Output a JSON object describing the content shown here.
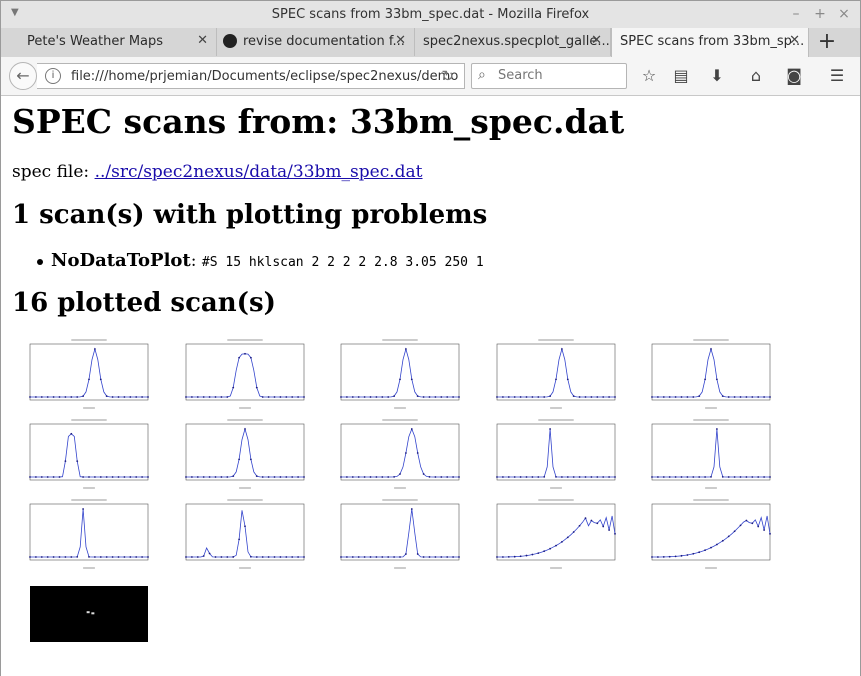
{
  "window": {
    "title": "SPEC scans from 33bm_spec.dat - Mozilla Firefox"
  },
  "tabs": [
    {
      "label": "Pete's Weather Maps",
      "icon": "page-icon"
    },
    {
      "label": "revise documentation f...",
      "icon": "github-icon"
    },
    {
      "label": "spec2nexus.specplot_galle...",
      "icon": "page-icon"
    },
    {
      "label": "SPEC scans from 33bm_sp...",
      "icon": "page-icon",
      "active": true
    }
  ],
  "navbar": {
    "url": "file:///home/prjemian/Documents/eclipse/spec2nexus/demo",
    "search_placeholder": "Search"
  },
  "page": {
    "title": "SPEC scans from: 33bm_spec.dat",
    "spec_file_label": "spec file:",
    "spec_file_link": "../src/spec2nexus/data/33bm_spec.dat",
    "problems_heading": "1 scan(s) with plotting problems",
    "problem_name": "NoDataToPlot",
    "problem_sep": ":",
    "problem_detail": "#S 15 hklscan 2 2 2 2 2.8 3.05 250 1",
    "plotted_heading": "16 plotted scan(s)"
  },
  "thumbnails": [
    {
      "kind": "peak",
      "center": 0.55,
      "width": 0.05
    },
    {
      "kind": "plateau",
      "center": 0.5,
      "width": 0.09
    },
    {
      "kind": "peak",
      "center": 0.55,
      "width": 0.05
    },
    {
      "kind": "peak",
      "center": 0.55,
      "width": 0.05
    },
    {
      "kind": "peak",
      "center": 0.5,
      "width": 0.05
    },
    {
      "kind": "plateau",
      "center": 0.35,
      "width": 0.05
    },
    {
      "kind": "peak",
      "center": 0.5,
      "width": 0.05
    },
    {
      "kind": "peak",
      "center": 0.6,
      "width": 0.06
    },
    {
      "kind": "spike",
      "center": 0.45,
      "width": 0.02
    },
    {
      "kind": "spike",
      "center": 0.55,
      "width": 0.02
    },
    {
      "kind": "spike",
      "center": 0.45,
      "width": 0.02
    },
    {
      "kind": "double",
      "center": 0.48,
      "width": 0.03
    },
    {
      "kind": "spike",
      "center": 0.6,
      "width": 0.03
    },
    {
      "kind": "rise",
      "center": 0.75,
      "width": 0.1
    },
    {
      "kind": "rise",
      "center": 0.8,
      "width": 0.1
    },
    {
      "kind": "mesh",
      "center": 0.5,
      "width": 0.1
    }
  ]
}
